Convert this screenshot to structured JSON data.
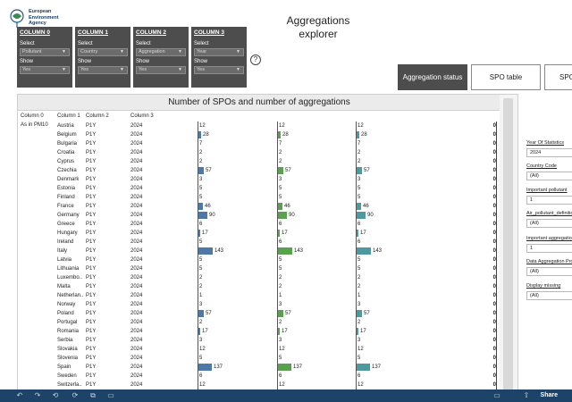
{
  "header": {
    "logo_lines": [
      "European",
      "Environment",
      "Agency"
    ],
    "title_line1": "Aggregations",
    "title_line2": "explorer"
  },
  "columns": [
    {
      "title": "COLUMN 0",
      "select_label": "Select",
      "select_value": "Pollutant",
      "show_label": "Show",
      "show_value": "Yes"
    },
    {
      "title": "COLUMN 1",
      "select_label": "Select",
      "select_value": "Country",
      "show_label": "Show",
      "show_value": "Yes"
    },
    {
      "title": "COLUMN 2",
      "select_label": "Select",
      "select_value": "Aggregation",
      "show_label": "Show",
      "show_value": "Yes"
    },
    {
      "title": "COLUMN 3",
      "select_label": "Select",
      "select_value": "Year",
      "show_label": "Show",
      "show_value": "Yes"
    }
  ],
  "help_icon": "?",
  "tabs": [
    {
      "label": "Aggregation status",
      "active": true
    },
    {
      "label": "SPO table",
      "active": false
    },
    {
      "label": "SPO",
      "active": false
    }
  ],
  "sheet": {
    "title": "Number of SPOs and number of aggregations",
    "headers": [
      "Column 0",
      "Column 1",
      "Column 2",
      "Column 3"
    ],
    "pollutant": "As in PM10",
    "max_value": 143,
    "rows": [
      {
        "country": "Austria",
        "freq": "P1Y",
        "year": "2024",
        "value": 12,
        "zero": "0"
      },
      {
        "country": "Belgium",
        "freq": "P1Y",
        "year": "2024",
        "value": 28,
        "zero": "0"
      },
      {
        "country": "Bulgaria",
        "freq": "P1Y",
        "year": "2024",
        "value": 7,
        "zero": "0"
      },
      {
        "country": "Croatia",
        "freq": "P1Y",
        "year": "2024",
        "value": 2,
        "zero": "0"
      },
      {
        "country": "Cyprus",
        "freq": "P1Y",
        "year": "2024",
        "value": 2,
        "zero": "0"
      },
      {
        "country": "Czechia",
        "freq": "P1Y",
        "year": "2024",
        "value": 57,
        "zero": "0"
      },
      {
        "country": "Denmark",
        "freq": "P1Y",
        "year": "2024",
        "value": 3,
        "zero": "0"
      },
      {
        "country": "Estonia",
        "freq": "P1Y",
        "year": "2024",
        "value": 5,
        "zero": "0"
      },
      {
        "country": "Finland",
        "freq": "P1Y",
        "year": "2024",
        "value": 5,
        "zero": "0"
      },
      {
        "country": "France",
        "freq": "P1Y",
        "year": "2024",
        "value": 46,
        "zero": "0"
      },
      {
        "country": "Germany",
        "freq": "P1Y",
        "year": "2024",
        "value": 90,
        "zero": "0"
      },
      {
        "country": "Greece",
        "freq": "P1Y",
        "year": "2024",
        "value": 6,
        "zero": "0"
      },
      {
        "country": "Hungary",
        "freq": "P1Y",
        "year": "2024",
        "value": 17,
        "zero": "0"
      },
      {
        "country": "Ireland",
        "freq": "P1Y",
        "year": "2024",
        "value": 5,
        "values": [
          5,
          6,
          6
        ],
        "zero": "0"
      },
      {
        "country": "Italy",
        "freq": "P1Y",
        "year": "2024",
        "value": 143,
        "zero": "0"
      },
      {
        "country": "Latvia",
        "freq": "P1Y",
        "year": "2024",
        "value": 5,
        "zero": "0"
      },
      {
        "country": "Lithuania",
        "freq": "P1Y",
        "year": "2024",
        "value": 5,
        "zero": "0"
      },
      {
        "country": "Luxembo..",
        "freq": "P1Y",
        "year": "2024",
        "value": 2,
        "zero": "0"
      },
      {
        "country": "Malta",
        "freq": "P1Y",
        "year": "2024",
        "value": 2,
        "zero": "0"
      },
      {
        "country": "Netherlan..",
        "freq": "P1Y",
        "year": "2024",
        "value": 1,
        "zero": "0"
      },
      {
        "country": "Norway",
        "freq": "P1Y",
        "year": "2024",
        "value": 3,
        "zero": "0"
      },
      {
        "country": "Poland",
        "freq": "P1Y",
        "year": "2024",
        "value": 57,
        "zero": "0"
      },
      {
        "country": "Portugal",
        "freq": "P1Y",
        "year": "2024",
        "value": 2,
        "zero": "0"
      },
      {
        "country": "Romania",
        "freq": "P1Y",
        "year": "2024",
        "value": 17,
        "zero": "0"
      },
      {
        "country": "Serbia",
        "freq": "P1Y",
        "year": "2024",
        "value": 3,
        "zero": "0"
      },
      {
        "country": "Slovakia",
        "freq": "P1Y",
        "year": "2024",
        "value": 12,
        "zero": "0"
      },
      {
        "country": "Slovenia",
        "freq": "P1Y",
        "year": "2024",
        "value": 5,
        "zero": "0"
      },
      {
        "country": "Spain",
        "freq": "P1Y",
        "year": "2024",
        "value": 137,
        "zero": "0"
      },
      {
        "country": "Sweden",
        "freq": "P1Y",
        "year": "2024",
        "value": 6,
        "zero": "0"
      },
      {
        "country": "Switzerla..",
        "freq": "P1Y",
        "year": "2024",
        "value": 12,
        "zero": "0"
      }
    ]
  },
  "filters": [
    {
      "label": "Year Of Statistics",
      "value": "2024"
    },
    {
      "label": "Country Code",
      "value": "(All)"
    },
    {
      "label": "Important pollutant",
      "value": "1"
    },
    {
      "label": "Air_pollutant_definition",
      "value": "(All)"
    },
    {
      "label": "Important aggregation",
      "value": "1"
    },
    {
      "label": "Data Aggregation Process",
      "value": "(All)"
    },
    {
      "label": "Display missing",
      "value": "(All)"
    }
  ],
  "toolbar": {
    "icons": [
      "undo-icon",
      "redo-icon",
      "revert-icon",
      "refresh-icon",
      "pause-icon",
      "device-icon",
      "comment-icon"
    ],
    "share_label": "Share"
  },
  "colors": {
    "bar_col1": "#4e79a7",
    "bar_col2": "#59a14f",
    "bar_col3": "#4e98a0",
    "panel_dark": "#4d4d4d",
    "toolbar": "#1d4468"
  }
}
